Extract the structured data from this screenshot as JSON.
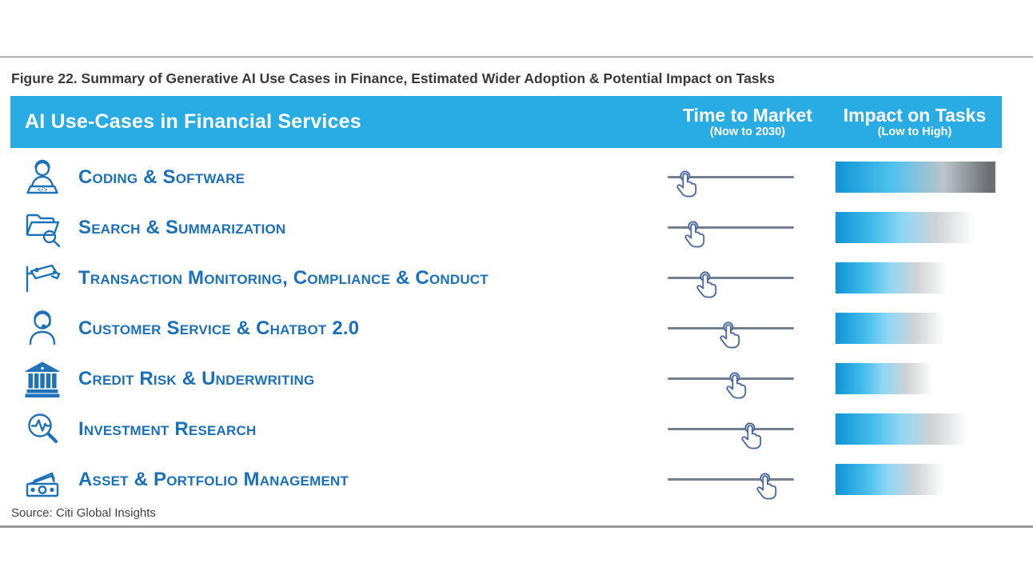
{
  "figure": {
    "caption": "Figure 22. Summary of Generative AI Use Cases in Finance, Estimated Wider Adoption & Potential Impact on Tasks",
    "source": "Source: Citi Global Insights"
  },
  "table": {
    "header": {
      "title": "AI Use-Cases in Financial Services",
      "col_time": {
        "label": "Time to Market",
        "sub": "(Now to 2030)"
      },
      "col_impact": {
        "label": "Impact on Tasks",
        "sub": "(Low to High)"
      }
    },
    "rows": [
      {
        "label": "Coding & Software",
        "icon": "developer-coding-icon",
        "time_to_market": 0.14,
        "impact": 1.0,
        "impact_end": "dark"
      },
      {
        "label": "Search & Summarization",
        "icon": "folder-search-icon",
        "time_to_market": 0.2,
        "impact": 0.88,
        "impact_end": "fade"
      },
      {
        "label": "Transaction Monitoring, Compliance & Conduct",
        "icon": "surveillance-camera-icon",
        "time_to_market": 0.3,
        "impact": 0.71,
        "impact_end": "fade"
      },
      {
        "label": "Customer Service & Chatbot 2.0",
        "icon": "headset-agent-icon",
        "time_to_market": 0.48,
        "impact": 0.69,
        "impact_end": "fade"
      },
      {
        "label": "Credit Risk & Underwriting",
        "icon": "bank-icon",
        "time_to_market": 0.53,
        "impact": 0.62,
        "impact_end": "fade"
      },
      {
        "label": "Investment Research",
        "icon": "research-magnifier-icon",
        "time_to_market": 0.65,
        "impact": 0.84,
        "impact_end": "fade"
      },
      {
        "label": "Asset & Portfolio Management",
        "icon": "banknotes-icon",
        "time_to_market": 0.77,
        "impact": 0.69,
        "impact_end": "fade"
      }
    ]
  },
  "colors": {
    "banner_cyan": "#29ACE3",
    "label_blue": "#1C70B7",
    "bar_blue": "#29ABE2",
    "bar_dark_end": "#6B6F72",
    "slider_line": "#75808F",
    "divider_gray": "#9B9B9B"
  },
  "chart_data": {
    "type": "table",
    "title": "Figure 22. Summary of Generative AI Use Cases in Finance, Estimated Wider Adoption & Potential Impact on Tasks",
    "columns": [
      "AI Use-Cases in Financial Services",
      "Time to Market (Now to 2030)",
      "Impact on Tasks (Low to High)"
    ],
    "rows": [
      {
        "use_case": "Coding & Software",
        "time_to_market_position": 0.14,
        "impact_on_tasks": 1.0
      },
      {
        "use_case": "Search & Summarization",
        "time_to_market_position": 0.2,
        "impact_on_tasks": 0.88
      },
      {
        "use_case": "Transaction Monitoring, Compliance & Conduct",
        "time_to_market_position": 0.3,
        "impact_on_tasks": 0.71
      },
      {
        "use_case": "Customer Service & Chatbot 2.0",
        "time_to_market_position": 0.48,
        "impact_on_tasks": 0.69
      },
      {
        "use_case": "Credit Risk & Underwriting",
        "time_to_market_position": 0.53,
        "impact_on_tasks": 0.62
      },
      {
        "use_case": "Investment Research",
        "time_to_market_position": 0.65,
        "impact_on_tasks": 0.84
      },
      {
        "use_case": "Asset & Portfolio Management",
        "time_to_market_position": 0.77,
        "impact_on_tasks": 0.69
      }
    ],
    "notes": "Time to Market drawn as a tap-hand slider along a line from Now (left) to 2030 (right); Impact on Tasks drawn as a blue-to-gray gradient bar whose length/darkness indicates Low to High impact.",
    "legend_position": "none",
    "source": "Source: Citi Global Insights"
  }
}
